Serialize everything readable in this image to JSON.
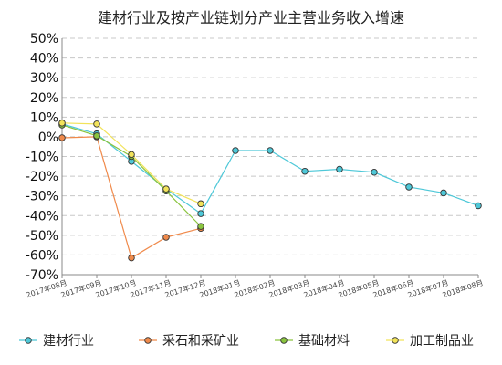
{
  "chart_data": {
    "type": "line",
    "title": "建材行业及按产业链划分产业主营业务收入增速",
    "categories": [
      "2017年08月",
      "2017年09月",
      "2017年10月",
      "2017年11月",
      "2017年12月",
      "2018年01月",
      "2018年02月",
      "2018年03月",
      "2018年04月",
      "2018年05月",
      "2018年06月",
      "2018年07月",
      "2018年08月"
    ],
    "y_ticks": [
      "50%",
      "40%",
      "30%",
      "20%",
      "10%",
      "0%",
      "-10%",
      "-20%",
      "-30%",
      "-40%",
      "-50%",
      "-60%",
      "-70%"
    ],
    "ylim": [
      -70,
      50
    ],
    "grid": true,
    "legend_position": "bottom",
    "series": [
      {
        "name": "建材行业",
        "color": "#4ec8d8",
        "values": [
          6.5,
          1.5,
          -12.5,
          -26.5,
          -39.0,
          -7.0,
          -7.0,
          -17.5,
          -16.5,
          -18.0,
          -25.5,
          -28.5,
          -35.0
        ]
      },
      {
        "name": "采石和采矿业",
        "color": "#f08a4b",
        "values": [
          -0.5,
          0.0,
          -61.5,
          -51.0,
          -46.5,
          null,
          null,
          null,
          null,
          null,
          null,
          null,
          null
        ]
      },
      {
        "name": "基础材料",
        "color": "#8ac43f",
        "values": [
          6.0,
          0.5,
          -10.0,
          -27.5,
          -45.5,
          null,
          null,
          null,
          null,
          null,
          null,
          null,
          null
        ]
      },
      {
        "name": "加工制品业",
        "color": "#f2e35a",
        "values": [
          7.0,
          6.5,
          -9.0,
          -26.5,
          -34.0,
          null,
          null,
          null,
          null,
          null,
          null,
          null,
          null
        ]
      }
    ]
  }
}
